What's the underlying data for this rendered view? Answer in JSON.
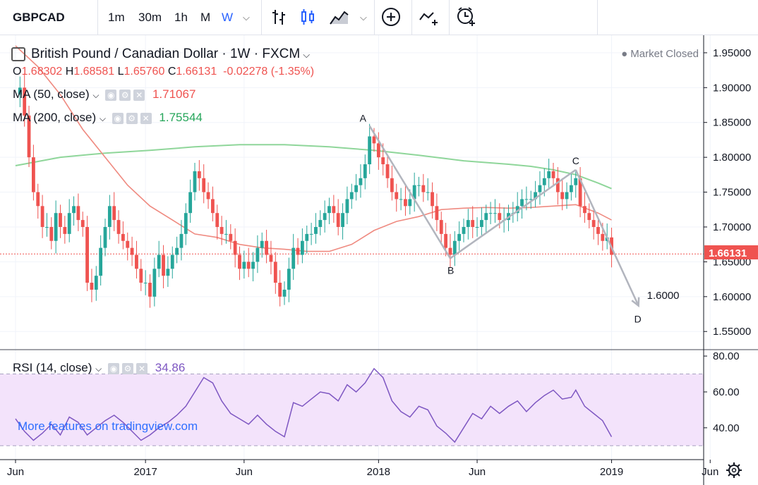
{
  "toolbar": {
    "symbol": "GBPCAD",
    "intervals": [
      "1m",
      "30m",
      "1h",
      "M",
      "W"
    ],
    "active_interval": "W"
  },
  "header": {
    "title": "British Pound / Canadian Dollar · 1W · FXCM",
    "market_status": "Market Closed",
    "open_label": "O",
    "open": "1.68302",
    "high_label": "H",
    "high": "1.68581",
    "low_label": "L",
    "low": "1.65760",
    "close_label": "C",
    "close": "1.66131",
    "change": "-0.02278 (-1.35%)"
  },
  "indicators": {
    "ma50": {
      "label": "MA (50, close)",
      "value": "1.71067",
      "color": "#ef5350"
    },
    "ma200": {
      "label": "MA (200, close)",
      "value": "1.75544",
      "color": "#26a65b"
    },
    "rsi": {
      "label": "RSI (14, close)",
      "value": "34.86",
      "color": "#7e57c2"
    }
  },
  "watermark": "More features on tradingview.com",
  "colors": {
    "up": "#26a69a",
    "down": "#ef5350",
    "ma50": "#ef8a80",
    "ma200": "#8fd69a",
    "rsi": "#7e57c2",
    "rsi_band": "#f3e3fb",
    "annotation": "#b2b5be"
  },
  "chart_data": {
    "type": "candlestick",
    "symbol": "GBPCAD",
    "price_axis": {
      "ticks": [
        1.95,
        1.9,
        1.85,
        1.8,
        1.75,
        1.7,
        1.65,
        1.6,
        1.55
      ],
      "tick_labels": [
        "1.95000",
        "1.90000",
        "1.85000",
        "1.80000",
        "1.75000",
        "1.70000",
        "1.65000",
        "1.60000",
        "1.55000"
      ],
      "ylim": [
        1.53,
        1.96
      ]
    },
    "last_price_label": "1.66131",
    "last_price": 1.66131,
    "rsi_axis": {
      "tick_labels": [
        "80.00",
        "60.00",
        "40.00"
      ],
      "ticks": [
        80,
        60,
        40
      ],
      "band": [
        30,
        70
      ],
      "ylim": [
        25,
        82
      ]
    },
    "time_axis": {
      "labels": [
        "Jun",
        "2017",
        "Jun",
        "2018",
        "Jun",
        "2019",
        "Jun"
      ],
      "label_weeks": [
        0,
        29,
        51,
        81,
        103,
        133,
        155
      ]
    },
    "close_path": [
      [
        0,
        1.89
      ],
      [
        1,
        1.9
      ],
      [
        2,
        1.86
      ],
      [
        3,
        1.8
      ],
      [
        4,
        1.75
      ],
      [
        5,
        1.73
      ],
      [
        6,
        1.7
      ],
      [
        7,
        1.7
      ],
      [
        8,
        1.68
      ],
      [
        9,
        1.72
      ],
      [
        10,
        1.7
      ],
      [
        11,
        1.69
      ],
      [
        12,
        1.72
      ],
      [
        13,
        1.73
      ],
      [
        14,
        1.71
      ],
      [
        15,
        1.7
      ],
      [
        16,
        1.62
      ],
      [
        17,
        1.61
      ],
      [
        18,
        1.63
      ],
      [
        19,
        1.67
      ],
      [
        20,
        1.7
      ],
      [
        21,
        1.73
      ],
      [
        22,
        1.71
      ],
      [
        23,
        1.69
      ],
      [
        24,
        1.68
      ],
      [
        25,
        1.67
      ],
      [
        26,
        1.66
      ],
      [
        27,
        1.64
      ],
      [
        28,
        1.62
      ],
      [
        29,
        1.62
      ],
      [
        30,
        1.6
      ],
      [
        31,
        1.64
      ],
      [
        32,
        1.66
      ],
      [
        33,
        1.63
      ],
      [
        34,
        1.64
      ],
      [
        35,
        1.66
      ],
      [
        36,
        1.67
      ],
      [
        37,
        1.69
      ],
      [
        38,
        1.72
      ],
      [
        39,
        1.75
      ],
      [
        40,
        1.78
      ],
      [
        41,
        1.77
      ],
      [
        42,
        1.75
      ],
      [
        43,
        1.74
      ],
      [
        44,
        1.72
      ],
      [
        45,
        1.7
      ],
      [
        46,
        1.69
      ],
      [
        47,
        1.69
      ],
      [
        48,
        1.68
      ],
      [
        49,
        1.66
      ],
      [
        50,
        1.64
      ],
      [
        51,
        1.65
      ],
      [
        52,
        1.64
      ],
      [
        53,
        1.65
      ],
      [
        54,
        1.67
      ],
      [
        55,
        1.68
      ],
      [
        56,
        1.66
      ],
      [
        57,
        1.65
      ],
      [
        58,
        1.62
      ],
      [
        59,
        1.6
      ],
      [
        60,
        1.61
      ],
      [
        61,
        1.64
      ],
      [
        62,
        1.67
      ],
      [
        63,
        1.66
      ],
      [
        64,
        1.68
      ],
      [
        65,
        1.69
      ],
      [
        66,
        1.69
      ],
      [
        67,
        1.7
      ],
      [
        68,
        1.71
      ],
      [
        69,
        1.72
      ],
      [
        70,
        1.73
      ],
      [
        71,
        1.72
      ],
      [
        72,
        1.7
      ],
      [
        73,
        1.72
      ],
      [
        74,
        1.74
      ],
      [
        75,
        1.75
      ],
      [
        76,
        1.76
      ],
      [
        77,
        1.77
      ],
      [
        78,
        1.79
      ],
      [
        79,
        1.83
      ],
      [
        80,
        1.82
      ],
      [
        81,
        1.8
      ],
      [
        82,
        1.79
      ],
      [
        83,
        1.77
      ],
      [
        84,
        1.75
      ],
      [
        85,
        1.74
      ],
      [
        86,
        1.74
      ],
      [
        87,
        1.73
      ],
      [
        88,
        1.74
      ],
      [
        89,
        1.76
      ],
      [
        90,
        1.76
      ],
      [
        91,
        1.75
      ],
      [
        92,
        1.75
      ],
      [
        93,
        1.73
      ],
      [
        94,
        1.71
      ],
      [
        95,
        1.69
      ],
      [
        96,
        1.67
      ],
      [
        97,
        1.66
      ],
      [
        98,
        1.68
      ],
      [
        99,
        1.69
      ],
      [
        100,
        1.7
      ],
      [
        101,
        1.71
      ],
      [
        102,
        1.7
      ],
      [
        103,
        1.7
      ],
      [
        104,
        1.71
      ],
      [
        105,
        1.72
      ],
      [
        106,
        1.72
      ],
      [
        107,
        1.72
      ],
      [
        108,
        1.71
      ],
      [
        109,
        1.71
      ],
      [
        110,
        1.72
      ],
      [
        111,
        1.72
      ],
      [
        112,
        1.73
      ],
      [
        113,
        1.74
      ],
      [
        114,
        1.74
      ],
      [
        115,
        1.74
      ],
      [
        116,
        1.75
      ],
      [
        117,
        1.76
      ],
      [
        118,
        1.77
      ],
      [
        119,
        1.78
      ],
      [
        120,
        1.77
      ],
      [
        121,
        1.75
      ],
      [
        122,
        1.74
      ],
      [
        123,
        1.75
      ],
      [
        124,
        1.76
      ],
      [
        125,
        1.77
      ],
      [
        126,
        1.73
      ],
      [
        127,
        1.72
      ],
      [
        128,
        1.71
      ],
      [
        129,
        1.7
      ],
      [
        130,
        1.69
      ],
      [
        131,
        1.68
      ],
      [
        132,
        1.685
      ],
      [
        133,
        1.66
      ]
    ],
    "ma50_path": [
      [
        0,
        1.96
      ],
      [
        5,
        1.93
      ],
      [
        10,
        1.89
      ],
      [
        15,
        1.84
      ],
      [
        20,
        1.8
      ],
      [
        25,
        1.76
      ],
      [
        30,
        1.73
      ],
      [
        35,
        1.71
      ],
      [
        40,
        1.69
      ],
      [
        45,
        1.685
      ],
      [
        50,
        1.675
      ],
      [
        55,
        1.67
      ],
      [
        60,
        1.668
      ],
      [
        65,
        1.665
      ],
      [
        70,
        1.665
      ],
      [
        75,
        1.675
      ],
      [
        80,
        1.695
      ],
      [
        85,
        1.708
      ],
      [
        90,
        1.715
      ],
      [
        95,
        1.725
      ],
      [
        100,
        1.727
      ],
      [
        105,
        1.728
      ],
      [
        110,
        1.727
      ],
      [
        115,
        1.728
      ],
      [
        120,
        1.73
      ],
      [
        125,
        1.732
      ],
      [
        130,
        1.72
      ],
      [
        133,
        1.71
      ]
    ],
    "ma200_path": [
      [
        0,
        1.788
      ],
      [
        10,
        1.8
      ],
      [
        20,
        1.806
      ],
      [
        30,
        1.81
      ],
      [
        40,
        1.815
      ],
      [
        50,
        1.818
      ],
      [
        60,
        1.818
      ],
      [
        70,
        1.815
      ],
      [
        80,
        1.81
      ],
      [
        90,
        1.803
      ],
      [
        100,
        1.795
      ],
      [
        110,
        1.79
      ],
      [
        115,
        1.787
      ],
      [
        120,
        1.782
      ],
      [
        125,
        1.775
      ],
      [
        130,
        1.763
      ],
      [
        133,
        1.755
      ]
    ],
    "rsi_path": [
      [
        0,
        45
      ],
      [
        2,
        38
      ],
      [
        4,
        33
      ],
      [
        6,
        37
      ],
      [
        8,
        42
      ],
      [
        10,
        36
      ],
      [
        12,
        46
      ],
      [
        14,
        43
      ],
      [
        16,
        36
      ],
      [
        18,
        40
      ],
      [
        20,
        44
      ],
      [
        22,
        47
      ],
      [
        24,
        43
      ],
      [
        26,
        38
      ],
      [
        28,
        33
      ],
      [
        30,
        36
      ],
      [
        32,
        40
      ],
      [
        34,
        43
      ],
      [
        36,
        47
      ],
      [
        38,
        52
      ],
      [
        40,
        60
      ],
      [
        42,
        68
      ],
      [
        44,
        65
      ],
      [
        46,
        55
      ],
      [
        48,
        48
      ],
      [
        50,
        45
      ],
      [
        52,
        42
      ],
      [
        54,
        47
      ],
      [
        56,
        42
      ],
      [
        58,
        38
      ],
      [
        60,
        35
      ],
      [
        62,
        54
      ],
      [
        64,
        52
      ],
      [
        66,
        56
      ],
      [
        68,
        60
      ],
      [
        70,
        59
      ],
      [
        72,
        55
      ],
      [
        74,
        64
      ],
      [
        76,
        60
      ],
      [
        78,
        65
      ],
      [
        80,
        73
      ],
      [
        82,
        68
      ],
      [
        84,
        55
      ],
      [
        86,
        49
      ],
      [
        88,
        46
      ],
      [
        90,
        52
      ],
      [
        92,
        50
      ],
      [
        94,
        41
      ],
      [
        96,
        37
      ],
      [
        98,
        32
      ],
      [
        100,
        40
      ],
      [
        102,
        48
      ],
      [
        104,
        45
      ],
      [
        106,
        52
      ],
      [
        108,
        48
      ],
      [
        110,
        52
      ],
      [
        112,
        55
      ],
      [
        114,
        49
      ],
      [
        116,
        54
      ],
      [
        118,
        58
      ],
      [
        120,
        61
      ],
      [
        122,
        56
      ],
      [
        124,
        57
      ],
      [
        125,
        61
      ],
      [
        127,
        52
      ],
      [
        129,
        48
      ],
      [
        131,
        44
      ],
      [
        133,
        35
      ]
    ],
    "wave_points": [
      {
        "label": "A",
        "week": 79,
        "price": 1.845
      },
      {
        "label": "B",
        "week": 97,
        "price": 1.655
      },
      {
        "label": "C",
        "week": 125,
        "price": 1.782
      },
      {
        "label": "D",
        "week": 139,
        "price": 1.587
      }
    ],
    "target_label": "1.6000",
    "target_price": 1.6
  }
}
